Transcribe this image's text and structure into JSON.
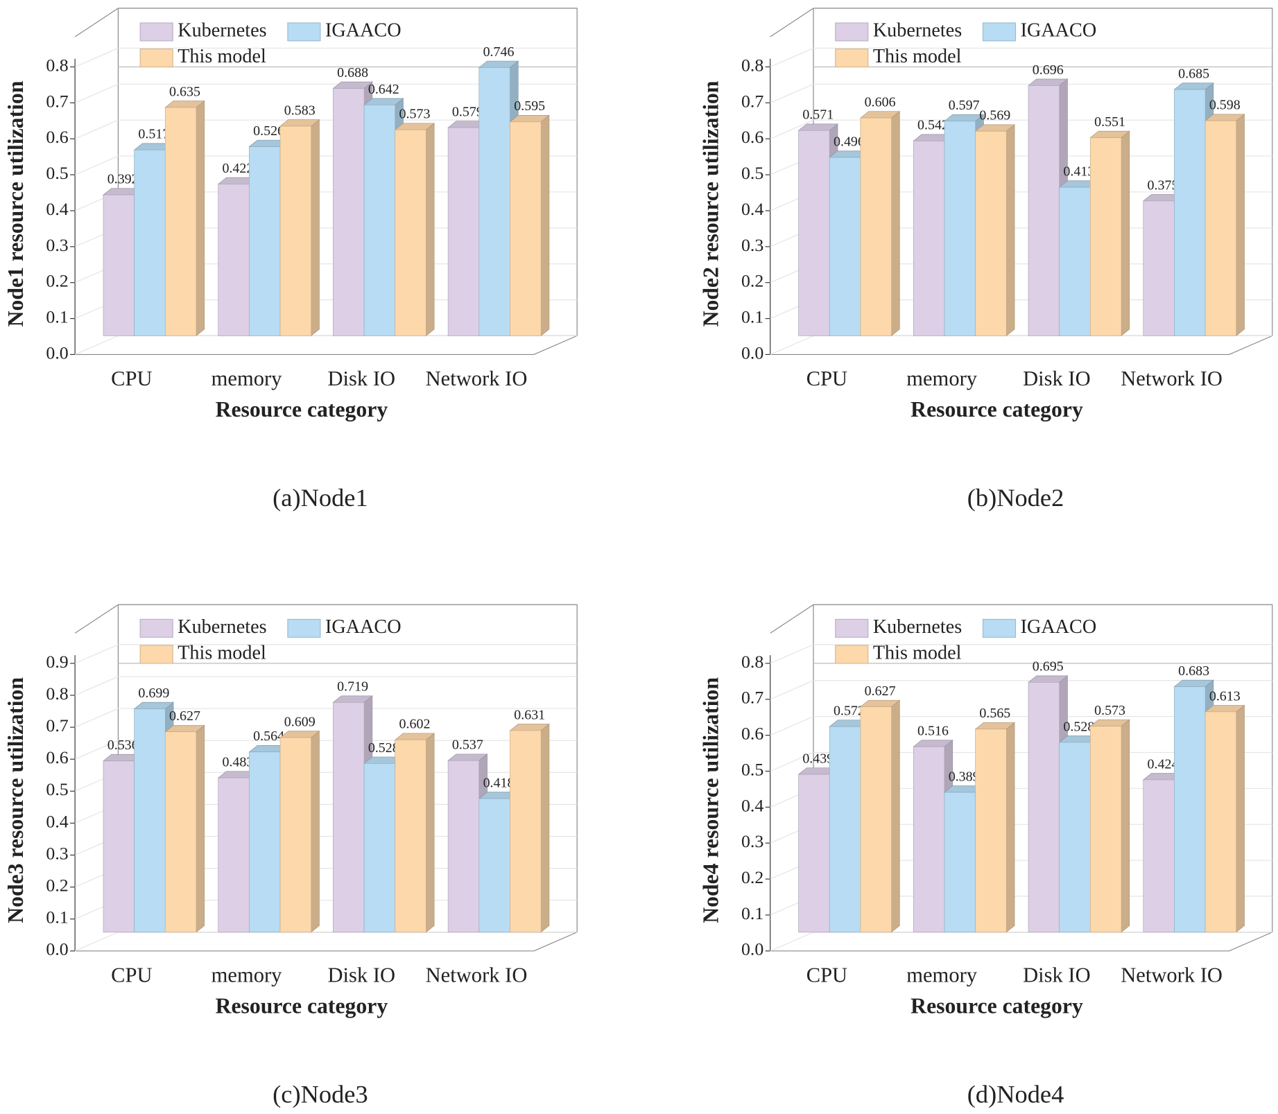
{
  "chart_data": [
    {
      "type": "bar",
      "caption": "(a)Node1",
      "x_label": "Resource category",
      "y_label": "Node1 resource utilization",
      "categories": [
        "CPU",
        "memory",
        "Disk IO",
        "Network IO"
      ],
      "series": [
        {
          "name": "Kubernetes",
          "color": "#dccfe6",
          "values": [
            0.392,
            0.422,
            0.688,
            0.579
          ]
        },
        {
          "name": "IGAACO",
          "color": "#b7dcf3",
          "values": [
            0.517,
            0.526,
            0.642,
            0.746
          ]
        },
        {
          "name": "This model",
          "color": "#fdd8ab",
          "values": [
            0.635,
            0.583,
            0.573,
            0.595
          ]
        }
      ],
      "ylim": [
        0,
        0.8
      ],
      "yticks": [
        {
          "value": 0,
          "label": "0.0"
        },
        0.1,
        0.2,
        0.3,
        0.4,
        0.5,
        0.6,
        0.7,
        0.8
      ],
      "grid": true,
      "legend": "top-left"
    },
    {
      "type": "bar",
      "caption": "(b)Node2",
      "x_label": "Resource category",
      "y_label": "Node2 resource utilization",
      "categories": [
        "CPU",
        "memory",
        "Disk IO",
        "Network IO"
      ],
      "series": [
        {
          "name": "Kubernetes",
          "color": "#dccfe6",
          "values": [
            0.571,
            0.542,
            0.696,
            0.375
          ]
        },
        {
          "name": "IGAACO",
          "color": "#b7dcf3",
          "values": [
            0.496,
            0.597,
            0.413,
            0.685
          ]
        },
        {
          "name": "This model",
          "color": "#fdd8ab",
          "values": [
            0.606,
            0.569,
            0.551,
            0.598
          ]
        }
      ],
      "ylim": [
        0,
        0.8
      ],
      "yticks": [
        {
          "value": 0,
          "label": "0.0"
        },
        0.1,
        0.2,
        0.3,
        0.4,
        0.5,
        0.6,
        0.7,
        0.8
      ],
      "grid": true,
      "legend": "top-left"
    },
    {
      "type": "bar",
      "caption": "(c)Node3",
      "x_label": "Resource category",
      "y_label": "Node3 resource utilization",
      "categories": [
        "CPU",
        "memory",
        "Disk IO",
        "Network IO"
      ],
      "series": [
        {
          "name": "Kubernetes",
          "color": "#dccfe6",
          "values": [
            0.536,
            0.483,
            0.719,
            0.537
          ]
        },
        {
          "name": "IGAACO",
          "color": "#b7dcf3",
          "values": [
            0.699,
            0.564,
            0.528,
            0.418
          ]
        },
        {
          "name": "This model",
          "color": "#fdd8ab",
          "values": [
            0.627,
            0.609,
            0.602,
            0.631
          ]
        }
      ],
      "ylim": [
        0,
        0.9
      ],
      "yticks": [
        {
          "value": 0,
          "label": "0.0"
        },
        0.1,
        0.2,
        0.3,
        0.4,
        0.5,
        0.6,
        0.7,
        0.8,
        0.9
      ],
      "grid": true,
      "legend": "top-left"
    },
    {
      "type": "bar",
      "caption": "(d)Node4",
      "x_label": "Resource category",
      "y_label": "Node4 resource utilization",
      "categories": [
        "CPU",
        "memory",
        "Disk IO",
        "Network IO"
      ],
      "series": [
        {
          "name": "Kubernetes",
          "color": "#dccfe6",
          "values": [
            0.439,
            0.516,
            0.695,
            0.424
          ]
        },
        {
          "name": "IGAACO",
          "color": "#b7dcf3",
          "values": [
            0.572,
            0.389,
            0.528,
            0.683
          ]
        },
        {
          "name": "This model",
          "color": "#fdd8ab",
          "values": [
            0.627,
            0.565,
            0.573,
            0.613
          ]
        }
      ],
      "ylim": [
        0,
        0.8
      ],
      "yticks": [
        {
          "value": 0,
          "label": "0.0"
        },
        0.1,
        0.2,
        0.3,
        0.4,
        0.5,
        0.6,
        0.7,
        0.8
      ],
      "grid": true,
      "legend": "top-left"
    }
  ]
}
